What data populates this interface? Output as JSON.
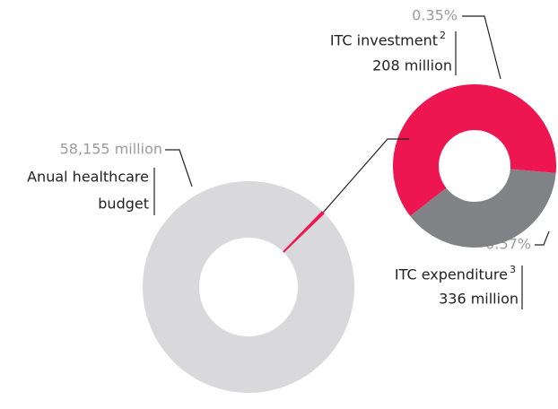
{
  "chart_data": {
    "type": "donut",
    "total": {
      "label_lines": [
        "Anual healthcare",
        "budget"
      ],
      "value": 58155,
      "value_label": "58,155 million",
      "color": "#d9d9db"
    },
    "expenditure": {
      "label": "ITC expenditure",
      "note": "3",
      "value": 336,
      "value_label": "336 million",
      "percent": 0.57,
      "percent_label": "0.57%",
      "color": "#808285"
    },
    "investment": {
      "label": "ITC investment",
      "note": "2",
      "value": 208,
      "value_label": "208 million",
      "percent": 0.35,
      "percent_label": "0.35%",
      "color": "#ee1651"
    }
  }
}
